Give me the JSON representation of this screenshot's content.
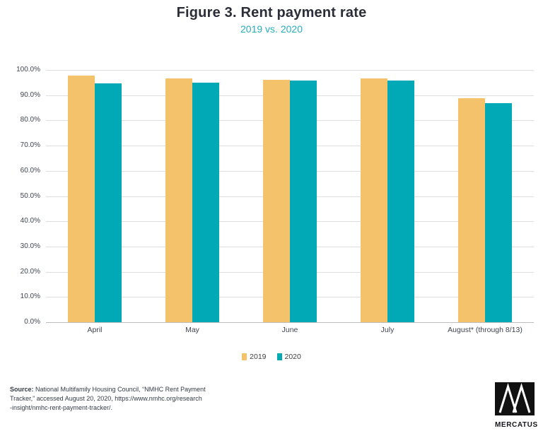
{
  "chart_data": {
    "type": "bar",
    "title": "Figure 3. Rent payment rate",
    "subtitle": "2019 vs. 2020",
    "categories": [
      "April",
      "May",
      "June",
      "July",
      "August* (through 8/13)"
    ],
    "series": [
      {
        "name": "2019",
        "color": "#F5C26C",
        "values": [
          97.7,
          96.6,
          96.0,
          96.6,
          88.8
        ]
      },
      {
        "name": "2020",
        "color": "#00A9B5",
        "values": [
          94.6,
          95.1,
          95.9,
          95.7,
          86.9
        ]
      }
    ],
    "xlabel": "",
    "ylabel": "",
    "ylim": [
      0,
      100
    ],
    "ytick_labels": [
      "100.0%",
      "90.0%",
      "80.0%",
      "70.0%",
      "60.0%",
      "50.0%",
      "40.0%",
      "30.0%",
      "20.0%",
      "10.0%",
      "0.0%"
    ],
    "grid": "horizontal-only",
    "legend_position": "bottom-center"
  },
  "legend": {
    "items": [
      {
        "label": "2019",
        "color": "#F5C26C"
      },
      {
        "label": "2020",
        "color": "#00A9B5"
      }
    ]
  },
  "source": {
    "label": "Source:",
    "line1": " National Multifamily Housing Council, “NMHC Rent Payment",
    "line2": "Tracker,” accessed August 20, 2020,  https://www.nmhc.org/research",
    "line3": "-insight/nmhc-rent-payment-tracker/."
  },
  "logo": {
    "text": "MERCATUS",
    "mark": "mercatus-m-logo"
  },
  "colors": {
    "title": "#2B2E39",
    "subtitle": "#27ACBE",
    "bar_2019": "#F5C26C",
    "bar_2020": "#00A9B5",
    "gridline": "#DEDEDE",
    "axis_line": "#BDBDBD",
    "text": "#3F4450",
    "logo_black": "#111111"
  }
}
